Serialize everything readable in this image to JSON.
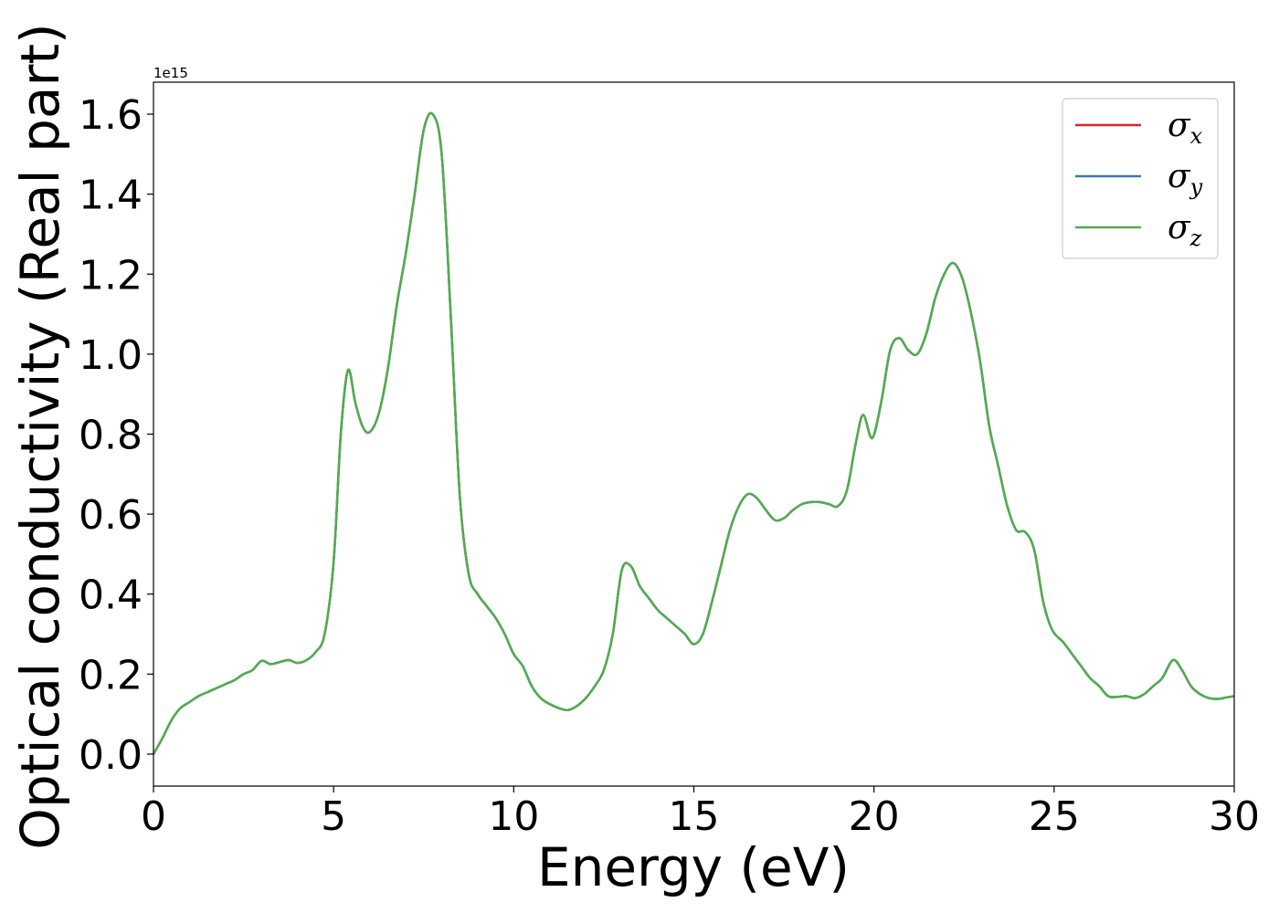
{
  "chart_data": {
    "type": "line",
    "xlabel": "Energy (eV)",
    "ylabel": "Optical conductivity (Real part)",
    "y_offset_label": "1e15",
    "xlim": [
      0,
      30
    ],
    "ylim": [
      -0.08,
      1.68
    ],
    "x_ticks": [
      0,
      5,
      10,
      15,
      20,
      25,
      30
    ],
    "x_tick_labels": [
      "0",
      "5",
      "10",
      "15",
      "20",
      "25",
      "30"
    ],
    "y_ticks": [
      0.0,
      0.2,
      0.4,
      0.6,
      0.8,
      1.0,
      1.2,
      1.4,
      1.6
    ],
    "y_tick_labels": [
      "0.0",
      "0.2",
      "0.4",
      "0.6",
      "0.8",
      "1.0",
      "1.2",
      "1.4",
      "1.6"
    ],
    "grid": false,
    "legend_position": "top-right",
    "x": [
      0,
      0.25,
      0.5,
      0.75,
      1.0,
      1.25,
      1.5,
      1.75,
      2.0,
      2.25,
      2.5,
      2.75,
      3.0,
      3.25,
      3.5,
      3.75,
      4.0,
      4.25,
      4.5,
      4.75,
      5.0,
      5.2,
      5.4,
      5.6,
      5.8,
      6.0,
      6.25,
      6.5,
      6.75,
      7.0,
      7.25,
      7.5,
      7.75,
      8.0,
      8.25,
      8.5,
      8.75,
      9.0,
      9.25,
      9.5,
      9.75,
      10.0,
      10.25,
      10.5,
      10.75,
      11.0,
      11.25,
      11.5,
      11.75,
      12.0,
      12.25,
      12.5,
      12.75,
      13.0,
      13.25,
      13.5,
      13.75,
      14.0,
      14.25,
      14.5,
      14.75,
      15.0,
      15.25,
      15.5,
      15.75,
      16.0,
      16.25,
      16.5,
      16.75,
      17.0,
      17.25,
      17.5,
      17.75,
      18.0,
      18.25,
      18.5,
      18.75,
      19.0,
      19.25,
      19.5,
      19.7,
      19.95,
      20.2,
      20.45,
      20.7,
      20.95,
      21.2,
      21.45,
      21.7,
      21.95,
      22.2,
      22.45,
      22.7,
      22.95,
      23.2,
      23.45,
      23.7,
      23.95,
      24.2,
      24.45,
      24.7,
      24.95,
      25.25,
      25.5,
      25.75,
      26.0,
      26.25,
      26.5,
      26.75,
      27.0,
      27.25,
      27.5,
      27.75,
      28.0,
      28.3,
      28.55,
      28.8,
      29.05,
      29.3,
      29.55,
      29.8,
      30.0
    ],
    "series": [
      {
        "name": "σx",
        "color": "#d62728",
        "values": [
          0.0,
          0.04,
          0.085,
          0.115,
          0.13,
          0.145,
          0.155,
          0.165,
          0.175,
          0.185,
          0.2,
          0.21,
          0.233,
          0.225,
          0.23,
          0.235,
          0.228,
          0.235,
          0.255,
          0.3,
          0.48,
          0.8,
          0.96,
          0.88,
          0.82,
          0.805,
          0.85,
          0.96,
          1.12,
          1.25,
          1.4,
          1.56,
          1.6,
          1.5,
          1.1,
          0.65,
          0.45,
          0.4,
          0.37,
          0.34,
          0.3,
          0.25,
          0.22,
          0.17,
          0.14,
          0.125,
          0.115,
          0.11,
          0.12,
          0.14,
          0.17,
          0.21,
          0.3,
          0.46,
          0.47,
          0.42,
          0.39,
          0.36,
          0.34,
          0.32,
          0.3,
          0.275,
          0.3,
          0.38,
          0.47,
          0.56,
          0.62,
          0.65,
          0.64,
          0.61,
          0.585,
          0.59,
          0.61,
          0.625,
          0.63,
          0.63,
          0.625,
          0.62,
          0.66,
          0.78,
          0.848,
          0.79,
          0.88,
          1.01,
          1.04,
          1.01,
          1.0,
          1.05,
          1.14,
          1.2,
          1.228,
          1.19,
          1.1,
          0.98,
          0.82,
          0.72,
          0.62,
          0.56,
          0.555,
          0.51,
          0.38,
          0.31,
          0.28,
          0.25,
          0.22,
          0.19,
          0.17,
          0.145,
          0.143,
          0.145,
          0.14,
          0.15,
          0.17,
          0.19,
          0.235,
          0.21,
          0.17,
          0.15,
          0.14,
          0.138,
          0.142,
          0.145
        ]
      },
      {
        "name": "σy",
        "color": "#3a78b5",
        "values": [
          0.0,
          0.04,
          0.085,
          0.115,
          0.13,
          0.145,
          0.155,
          0.165,
          0.175,
          0.185,
          0.2,
          0.21,
          0.233,
          0.225,
          0.23,
          0.235,
          0.228,
          0.235,
          0.255,
          0.3,
          0.48,
          0.8,
          0.96,
          0.88,
          0.82,
          0.805,
          0.85,
          0.96,
          1.12,
          1.25,
          1.4,
          1.56,
          1.6,
          1.5,
          1.1,
          0.65,
          0.45,
          0.4,
          0.37,
          0.34,
          0.3,
          0.25,
          0.22,
          0.17,
          0.14,
          0.125,
          0.115,
          0.11,
          0.12,
          0.14,
          0.17,
          0.21,
          0.3,
          0.46,
          0.47,
          0.42,
          0.39,
          0.36,
          0.34,
          0.32,
          0.3,
          0.275,
          0.3,
          0.38,
          0.47,
          0.56,
          0.62,
          0.65,
          0.64,
          0.61,
          0.585,
          0.59,
          0.61,
          0.625,
          0.63,
          0.63,
          0.625,
          0.62,
          0.66,
          0.78,
          0.848,
          0.79,
          0.88,
          1.01,
          1.04,
          1.01,
          1.0,
          1.05,
          1.14,
          1.2,
          1.228,
          1.19,
          1.1,
          0.98,
          0.82,
          0.72,
          0.62,
          0.56,
          0.555,
          0.51,
          0.38,
          0.31,
          0.28,
          0.25,
          0.22,
          0.19,
          0.17,
          0.145,
          0.143,
          0.145,
          0.14,
          0.15,
          0.17,
          0.19,
          0.235,
          0.21,
          0.17,
          0.15,
          0.14,
          0.138,
          0.142,
          0.145
        ]
      },
      {
        "name": "σz",
        "color": "#4daf4a",
        "values": [
          0.0,
          0.04,
          0.085,
          0.115,
          0.13,
          0.145,
          0.155,
          0.165,
          0.175,
          0.185,
          0.2,
          0.21,
          0.233,
          0.225,
          0.23,
          0.235,
          0.228,
          0.235,
          0.255,
          0.3,
          0.48,
          0.8,
          0.96,
          0.88,
          0.82,
          0.805,
          0.85,
          0.96,
          1.12,
          1.25,
          1.4,
          1.56,
          1.6,
          1.5,
          1.1,
          0.65,
          0.45,
          0.4,
          0.37,
          0.34,
          0.3,
          0.25,
          0.22,
          0.17,
          0.14,
          0.125,
          0.115,
          0.11,
          0.12,
          0.14,
          0.17,
          0.21,
          0.3,
          0.46,
          0.47,
          0.42,
          0.39,
          0.36,
          0.34,
          0.32,
          0.3,
          0.275,
          0.3,
          0.38,
          0.47,
          0.56,
          0.62,
          0.65,
          0.64,
          0.61,
          0.585,
          0.59,
          0.61,
          0.625,
          0.63,
          0.63,
          0.625,
          0.62,
          0.66,
          0.78,
          0.848,
          0.79,
          0.88,
          1.01,
          1.04,
          1.01,
          1.0,
          1.05,
          1.14,
          1.2,
          1.228,
          1.19,
          1.1,
          0.98,
          0.82,
          0.72,
          0.62,
          0.56,
          0.555,
          0.51,
          0.38,
          0.31,
          0.28,
          0.25,
          0.22,
          0.19,
          0.17,
          0.145,
          0.143,
          0.145,
          0.14,
          0.15,
          0.17,
          0.19,
          0.235,
          0.21,
          0.17,
          0.15,
          0.14,
          0.138,
          0.142,
          0.145
        ]
      }
    ],
    "legend": [
      {
        "symbol": "σ",
        "sub": "x",
        "color": "#d62728"
      },
      {
        "symbol": "σ",
        "sub": "y",
        "color": "#3a78b5"
      },
      {
        "symbol": "σ",
        "sub": "z",
        "color": "#4daf4a"
      }
    ]
  }
}
